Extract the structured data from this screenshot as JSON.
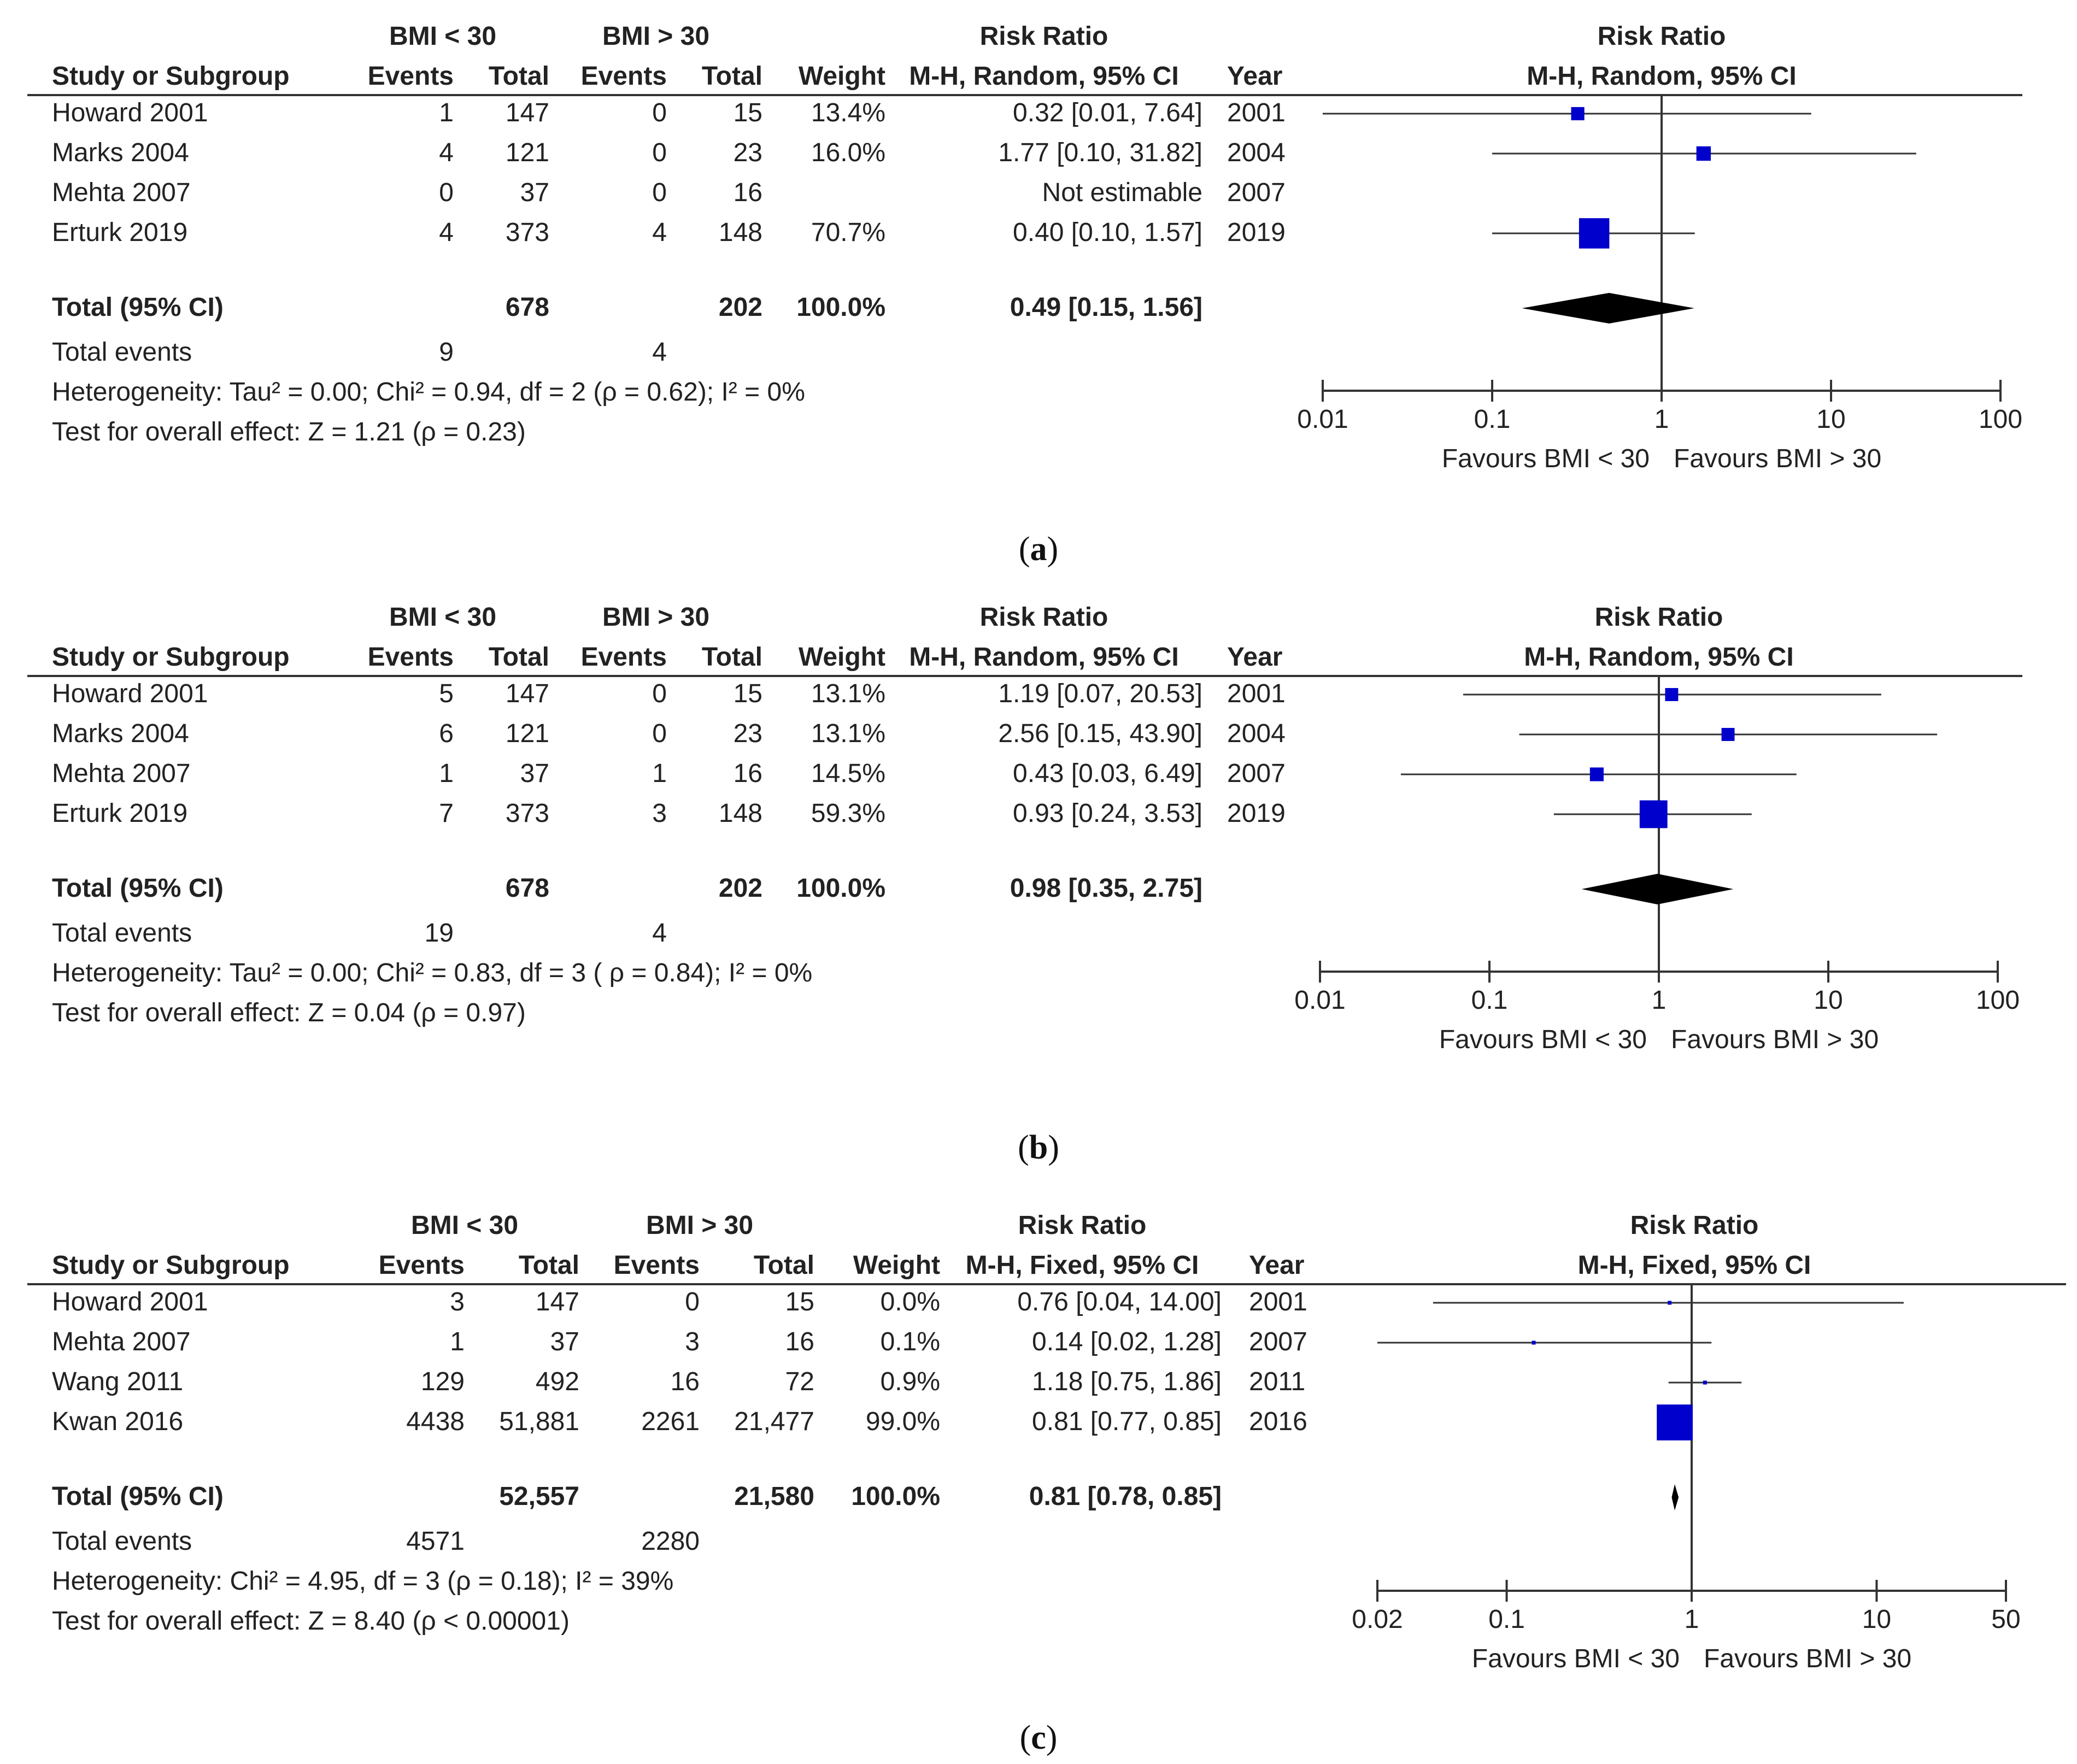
{
  "chart_data": [
    {
      "type": "forest",
      "caption_letter": "a",
      "header": {
        "group1": "BMI < 30",
        "group2": "BMI > 30",
        "study": "Study or Subgroup",
        "events": "Events",
        "total": "Total",
        "weight": "Weight",
        "effect_title": "Risk Ratio",
        "effect_method": "M-H, Random, 95% CI",
        "year": "Year",
        "plot_title": "Risk Ratio",
        "plot_method": "M-H, Random, 95% CI"
      },
      "studies": [
        {
          "name": "Howard 2001",
          "e1": "1",
          "n1": "147",
          "e2": "0",
          "n2": "15",
          "weight": "13.4%",
          "ci_text": "0.32 [0.01, 7.64]",
          "year": "2001",
          "rr": 0.32,
          "lo": 0.01,
          "hi": 7.64,
          "w": 13.4
        },
        {
          "name": "Marks 2004",
          "e1": "4",
          "n1": "121",
          "e2": "0",
          "n2": "23",
          "weight": "16.0%",
          "ci_text": "1.77 [0.10, 31.82]",
          "year": "2004",
          "rr": 1.77,
          "lo": 0.1,
          "hi": 31.82,
          "w": 16.0
        },
        {
          "name": "Mehta 2007",
          "e1": "0",
          "n1": "37",
          "e2": "0",
          "n2": "16",
          "weight": "",
          "ci_text": "Not estimable",
          "year": "2007",
          "rr": null,
          "lo": null,
          "hi": null,
          "w": null
        },
        {
          "name": "Erturk 2019",
          "e1": "4",
          "n1": "373",
          "e2": "4",
          "n2": "148",
          "weight": "70.7%",
          "ci_text": "0.40 [0.10, 1.57]",
          "year": "2019",
          "rr": 0.4,
          "lo": 0.1,
          "hi": 1.57,
          "w": 70.7
        }
      ],
      "total": {
        "label": "Total (95% CI)",
        "n1": "678",
        "n2": "202",
        "weight": "100.0%",
        "ci_text": "0.49 [0.15, 1.56]",
        "rr": 0.49,
        "lo": 0.15,
        "hi": 1.56
      },
      "total_events": {
        "label": "Total events",
        "e1": "9",
        "e2": "4"
      },
      "heterogeneity": "Heterogeneity: Tau² = 0.00; Chi² = 0.94, df = 2 (ρ = 0.62); I² = 0%",
      "overall": "Test for overall effect: Z = 1.21 (ρ = 0.23)",
      "axis": {
        "min": 0.01,
        "max": 100,
        "scale": "log",
        "ticks": [
          0.01,
          0.1,
          1,
          10,
          100
        ],
        "tick_labels": [
          "0.01",
          "0.1",
          "1",
          "10",
          "100"
        ]
      },
      "favours_left": "Favours BMI < 30",
      "favours_right": "Favours BMI > 30"
    },
    {
      "type": "forest",
      "caption_letter": "b",
      "header": {
        "group1": "BMI < 30",
        "group2": "BMI > 30",
        "study": "Study or Subgroup",
        "events": "Events",
        "total": "Total",
        "weight": "Weight",
        "effect_title": "Risk Ratio",
        "effect_method": "M-H, Random, 95% CI",
        "year": "Year",
        "plot_title": "Risk Ratio",
        "plot_method": "M-H, Random, 95% CI"
      },
      "studies": [
        {
          "name": "Howard 2001",
          "e1": "5",
          "n1": "147",
          "e2": "0",
          "n2": "15",
          "weight": "13.1%",
          "ci_text": "1.19 [0.07, 20.53]",
          "year": "2001",
          "rr": 1.19,
          "lo": 0.07,
          "hi": 20.53,
          "w": 13.1
        },
        {
          "name": "Marks 2004",
          "e1": "6",
          "n1": "121",
          "e2": "0",
          "n2": "23",
          "weight": "13.1%",
          "ci_text": "2.56 [0.15, 43.90]",
          "year": "2004",
          "rr": 2.56,
          "lo": 0.15,
          "hi": 43.9,
          "w": 13.1
        },
        {
          "name": "Mehta 2007",
          "e1": "1",
          "n1": "37",
          "e2": "1",
          "n2": "16",
          "weight": "14.5%",
          "ci_text": "0.43 [0.03, 6.49]",
          "year": "2007",
          "rr": 0.43,
          "lo": 0.03,
          "hi": 6.49,
          "w": 14.5
        },
        {
          "name": "Erturk 2019",
          "e1": "7",
          "n1": "373",
          "e2": "3",
          "n2": "148",
          "weight": "59.3%",
          "ci_text": "0.93 [0.24, 3.53]",
          "year": "2019",
          "rr": 0.93,
          "lo": 0.24,
          "hi": 3.53,
          "w": 59.3
        }
      ],
      "total": {
        "label": "Total (95% CI)",
        "n1": "678",
        "n2": "202",
        "weight": "100.0%",
        "ci_text": "0.98 [0.35, 2.75]",
        "rr": 0.98,
        "lo": 0.35,
        "hi": 2.75
      },
      "total_events": {
        "label": "Total events",
        "e1": "19",
        "e2": "4"
      },
      "heterogeneity": "Heterogeneity: Tau² = 0.00; Chi² = 0.83, df = 3 ( ρ = 0.84); I² = 0%",
      "overall": "Test for overall effect: Z = 0.04 (ρ = 0.97)",
      "axis": {
        "min": 0.01,
        "max": 100,
        "scale": "log",
        "ticks": [
          0.01,
          0.1,
          1,
          10,
          100
        ],
        "tick_labels": [
          "0.01",
          "0.1",
          "1",
          "10",
          "100"
        ]
      },
      "favours_left": "Favours BMI < 30",
      "favours_right": "Favours BMI > 30"
    },
    {
      "type": "forest",
      "caption_letter": "c",
      "header": {
        "group1": "BMI < 30",
        "group2": "BMI > 30",
        "study": "Study or Subgroup",
        "events": "Events",
        "total": "Total",
        "weight": "Weight",
        "effect_title": "Risk Ratio",
        "effect_method": "M-H, Fixed, 95% CI",
        "year": "Year",
        "plot_title": "Risk Ratio",
        "plot_method": "M-H, Fixed, 95% CI"
      },
      "studies": [
        {
          "name": "Howard 2001",
          "e1": "3",
          "n1": "147",
          "e2": "0",
          "n2": "15",
          "weight": "0.0%",
          "ci_text": "0.76 [0.04, 14.00]",
          "year": "2001",
          "rr": 0.76,
          "lo": 0.04,
          "hi": 14.0,
          "w": 0.0
        },
        {
          "name": "Mehta 2007",
          "e1": "1",
          "n1": "37",
          "e2": "3",
          "n2": "16",
          "weight": "0.1%",
          "ci_text": "0.14 [0.02, 1.28]",
          "year": "2007",
          "rr": 0.14,
          "lo": 0.02,
          "hi": 1.28,
          "w": 0.1
        },
        {
          "name": "Wang 2011",
          "e1": "129",
          "n1": "492",
          "e2": "16",
          "n2": "72",
          "weight": "0.9%",
          "ci_text": "1.18 [0.75, 1.86]",
          "year": "2011",
          "rr": 1.18,
          "lo": 0.75,
          "hi": 1.86,
          "w": 0.9
        },
        {
          "name": "Kwan 2016",
          "e1": "4438",
          "n1": "51,881",
          "e2": "2261",
          "n2": "21,477",
          "weight": "99.0%",
          "ci_text": "0.81 [0.77, 0.85]",
          "year": "2016",
          "rr": 0.81,
          "lo": 0.77,
          "hi": 0.85,
          "w": 99.0
        }
      ],
      "total": {
        "label": "Total (95% CI)",
        "n1": "52,557",
        "n2": "21,580",
        "weight": "100.0%",
        "ci_text": "0.81 [0.78, 0.85]",
        "rr": 0.81,
        "lo": 0.78,
        "hi": 0.85
      },
      "total_events": {
        "label": "Total events",
        "e1": "4571",
        "e2": "2280"
      },
      "heterogeneity": "Heterogeneity: Chi² = 4.95, df = 3 (ρ = 0.18); I² = 39%",
      "overall": "Test for overall effect: Z = 8.40 (ρ < 0.00001)",
      "axis": {
        "min": 0.02,
        "max": 50,
        "scale": "log",
        "ticks": [
          0.02,
          0.1,
          1,
          10,
          50
        ],
        "tick_labels": [
          "0.02",
          "0.1",
          "1",
          "10",
          "50"
        ]
      },
      "favours_left": "Favours BMI < 30",
      "favours_right": "Favours BMI > 30"
    }
  ],
  "colors": {
    "text": "#222222",
    "marker": "#0000cc",
    "diamond": "#000000",
    "line": "#333333"
  }
}
